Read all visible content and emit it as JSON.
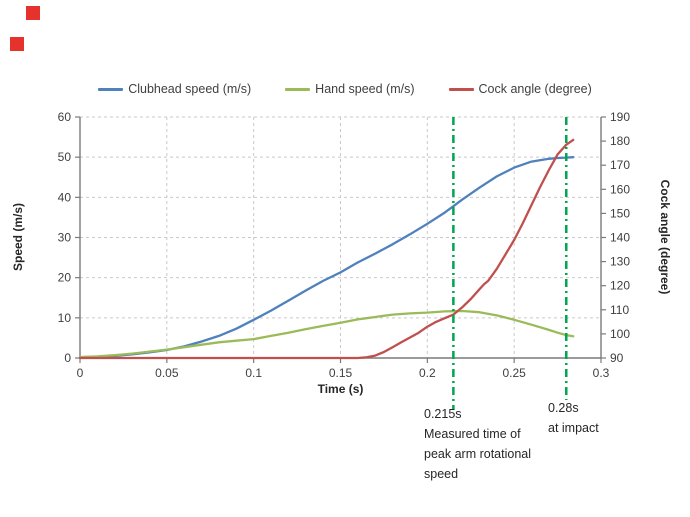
{
  "decoration": {
    "red_square_color": "#e5322d"
  },
  "legend": {
    "items": [
      {
        "label": "Clubhead speed (m/s)",
        "color": "#4F81BD"
      },
      {
        "label": "Hand speed (m/s)",
        "color": "#9BBB59"
      },
      {
        "label": "Cock angle (degree)",
        "color": "#C0504D"
      }
    ]
  },
  "axes": {
    "xlabel": "Time (s)",
    "ylabel_left": "Speed (m/s)",
    "ylabel_right": "Cock angle (degree)"
  },
  "chart_data": {
    "type": "line",
    "title": "",
    "xlabel": "Time (s)",
    "ylabel_left": "Speed (m/s)",
    "ylabel_right": "Cock angle (degree)",
    "xlim": [
      0,
      0.3
    ],
    "xtick_labels": [
      "0",
      "0.05",
      "0.1",
      "0.15",
      "0.2",
      "0.25",
      "0.3"
    ],
    "xticks": [
      0,
      0.05,
      0.1,
      0.15,
      0.2,
      0.25,
      0.3
    ],
    "ylim_left": [
      0,
      60
    ],
    "yticks_left": [
      0,
      10,
      20,
      30,
      40,
      50,
      60
    ],
    "ylim_right": [
      90,
      190
    ],
    "yticks_right": [
      90,
      100,
      110,
      120,
      130,
      140,
      150,
      160,
      170,
      180,
      190
    ],
    "grid": "dashed",
    "legend_position": "top",
    "axis_color": "#7a7a7a",
    "grid_color": "#c9c9c9",
    "series": [
      {
        "name": "Clubhead speed (m/s)",
        "color": "#4F81BD",
        "axis": "left",
        "x": [
          0,
          0.01,
          0.02,
          0.03,
          0.04,
          0.05,
          0.06,
          0.07,
          0.08,
          0.09,
          0.1,
          0.11,
          0.12,
          0.13,
          0.14,
          0.15,
          0.16,
          0.165,
          0.17,
          0.18,
          0.19,
          0.2,
          0.21,
          0.215,
          0.22,
          0.23,
          0.24,
          0.25,
          0.26,
          0.27,
          0.275,
          0.28,
          0.284
        ],
        "y": [
          0.2,
          0.3,
          0.5,
          0.9,
          1.4,
          2.0,
          2.9,
          4.1,
          5.5,
          7.3,
          9.5,
          11.8,
          14.3,
          16.8,
          19.2,
          21.3,
          23.8,
          24.9,
          26.0,
          28.3,
          30.8,
          33.4,
          36.2,
          37.8,
          39.4,
          42.4,
          45.2,
          47.4,
          48.9,
          49.6,
          49.8,
          49.9,
          50.0
        ]
      },
      {
        "name": "Hand speed (m/s)",
        "color": "#9BBB59",
        "axis": "left",
        "x": [
          0,
          0.01,
          0.02,
          0.03,
          0.04,
          0.05,
          0.06,
          0.07,
          0.08,
          0.09,
          0.1,
          0.11,
          0.12,
          0.13,
          0.14,
          0.15,
          0.16,
          0.165,
          0.17,
          0.18,
          0.19,
          0.2,
          0.21,
          0.215,
          0.22,
          0.23,
          0.24,
          0.25,
          0.26,
          0.27,
          0.275,
          0.28,
          0.284
        ],
        "y": [
          0.2,
          0.4,
          0.7,
          1.1,
          1.6,
          2.1,
          2.7,
          3.3,
          3.9,
          4.3,
          4.7,
          5.5,
          6.3,
          7.2,
          8.0,
          8.8,
          9.6,
          9.9,
          10.2,
          10.8,
          11.1,
          11.3,
          11.6,
          11.65,
          11.7,
          11.4,
          10.6,
          9.5,
          8.3,
          7.0,
          6.3,
          5.7,
          5.4
        ]
      },
      {
        "name": "Cock angle (degree)",
        "color": "#C0504D",
        "axis": "right",
        "x": [
          0,
          0.05,
          0.1,
          0.15,
          0.16,
          0.165,
          0.17,
          0.175,
          0.18,
          0.185,
          0.19,
          0.195,
          0.2,
          0.205,
          0.21,
          0.215,
          0.22,
          0.225,
          0.23,
          0.2325,
          0.235,
          0.24,
          0.245,
          0.25,
          0.255,
          0.26,
          0.265,
          0.27,
          0.275,
          0.28,
          0.284
        ],
        "y": [
          90,
          90,
          90,
          90,
          90,
          90.3,
          91,
          92.5,
          94.5,
          96.5,
          98.5,
          100.5,
          103,
          105,
          106.5,
          108,
          111,
          114.5,
          118.5,
          120.5,
          122,
          127,
          133,
          139,
          146,
          153.5,
          161,
          168,
          174.5,
          178.5,
          180.5
        ]
      }
    ],
    "annotations": [
      {
        "time": 0.215,
        "line_color": "#00A550",
        "label_lines": [
          "0.215s",
          "Measured time of",
          "peak arm rotational",
          "speed"
        ]
      },
      {
        "time": 0.28,
        "line_color": "#00A550",
        "label_lines": [
          "0.28s",
          "at impact"
        ]
      }
    ]
  }
}
